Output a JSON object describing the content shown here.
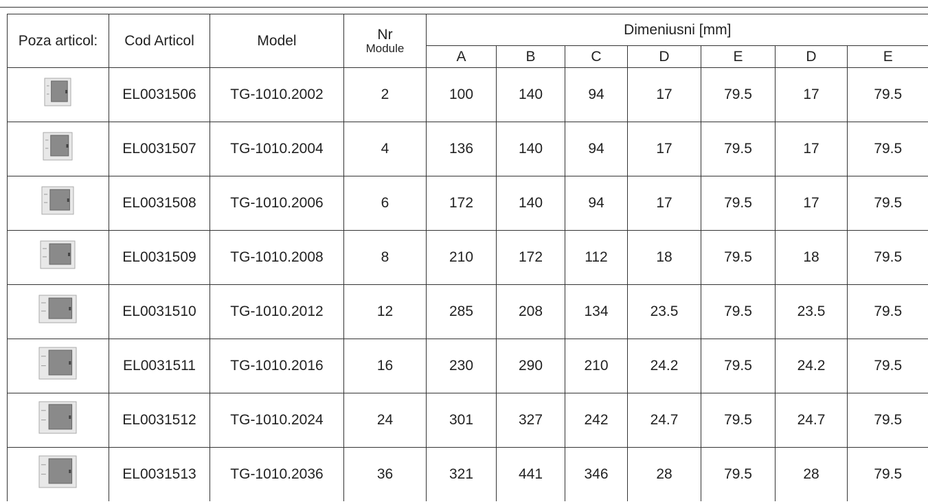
{
  "header": {
    "poza": "Poza articol:",
    "cod": "Cod Articol",
    "model": "Model",
    "nr": "Nr",
    "module": "Module",
    "dimensions": "Dimeniusni [mm]",
    "sub": [
      "A",
      "B",
      "C",
      "D",
      "E",
      "D",
      "E"
    ]
  },
  "rows": [
    [
      "EL0031506",
      "TG-1010.2002",
      2,
      100,
      140,
      94,
      17,
      79.5,
      17,
      79.5
    ],
    [
      "EL0031507",
      "TG-1010.2004",
      4,
      136,
      140,
      94,
      17,
      79.5,
      17,
      79.5
    ],
    [
      "EL0031508",
      "TG-1010.2006",
      6,
      172,
      140,
      94,
      17,
      79.5,
      17,
      79.5
    ],
    [
      "EL0031509",
      "TG-1010.2008",
      8,
      210,
      172,
      112,
      18,
      79.5,
      18,
      79.5
    ],
    [
      "EL0031510",
      "TG-1010.2012",
      12,
      285,
      208,
      134,
      23.5,
      79.5,
      23.5,
      79.5
    ],
    [
      "EL0031511",
      "TG-1010.2016",
      16,
      230,
      290,
      210,
      24.2,
      79.5,
      24.2,
      79.5
    ],
    [
      "EL0031512",
      "TG-1010.2024",
      24,
      301,
      327,
      242,
      24.7,
      79.5,
      24.7,
      79.5
    ],
    [
      "EL0031513",
      "TG-1010.2036",
      36,
      321,
      441,
      346,
      28,
      79.5,
      28,
      79.5
    ]
  ]
}
